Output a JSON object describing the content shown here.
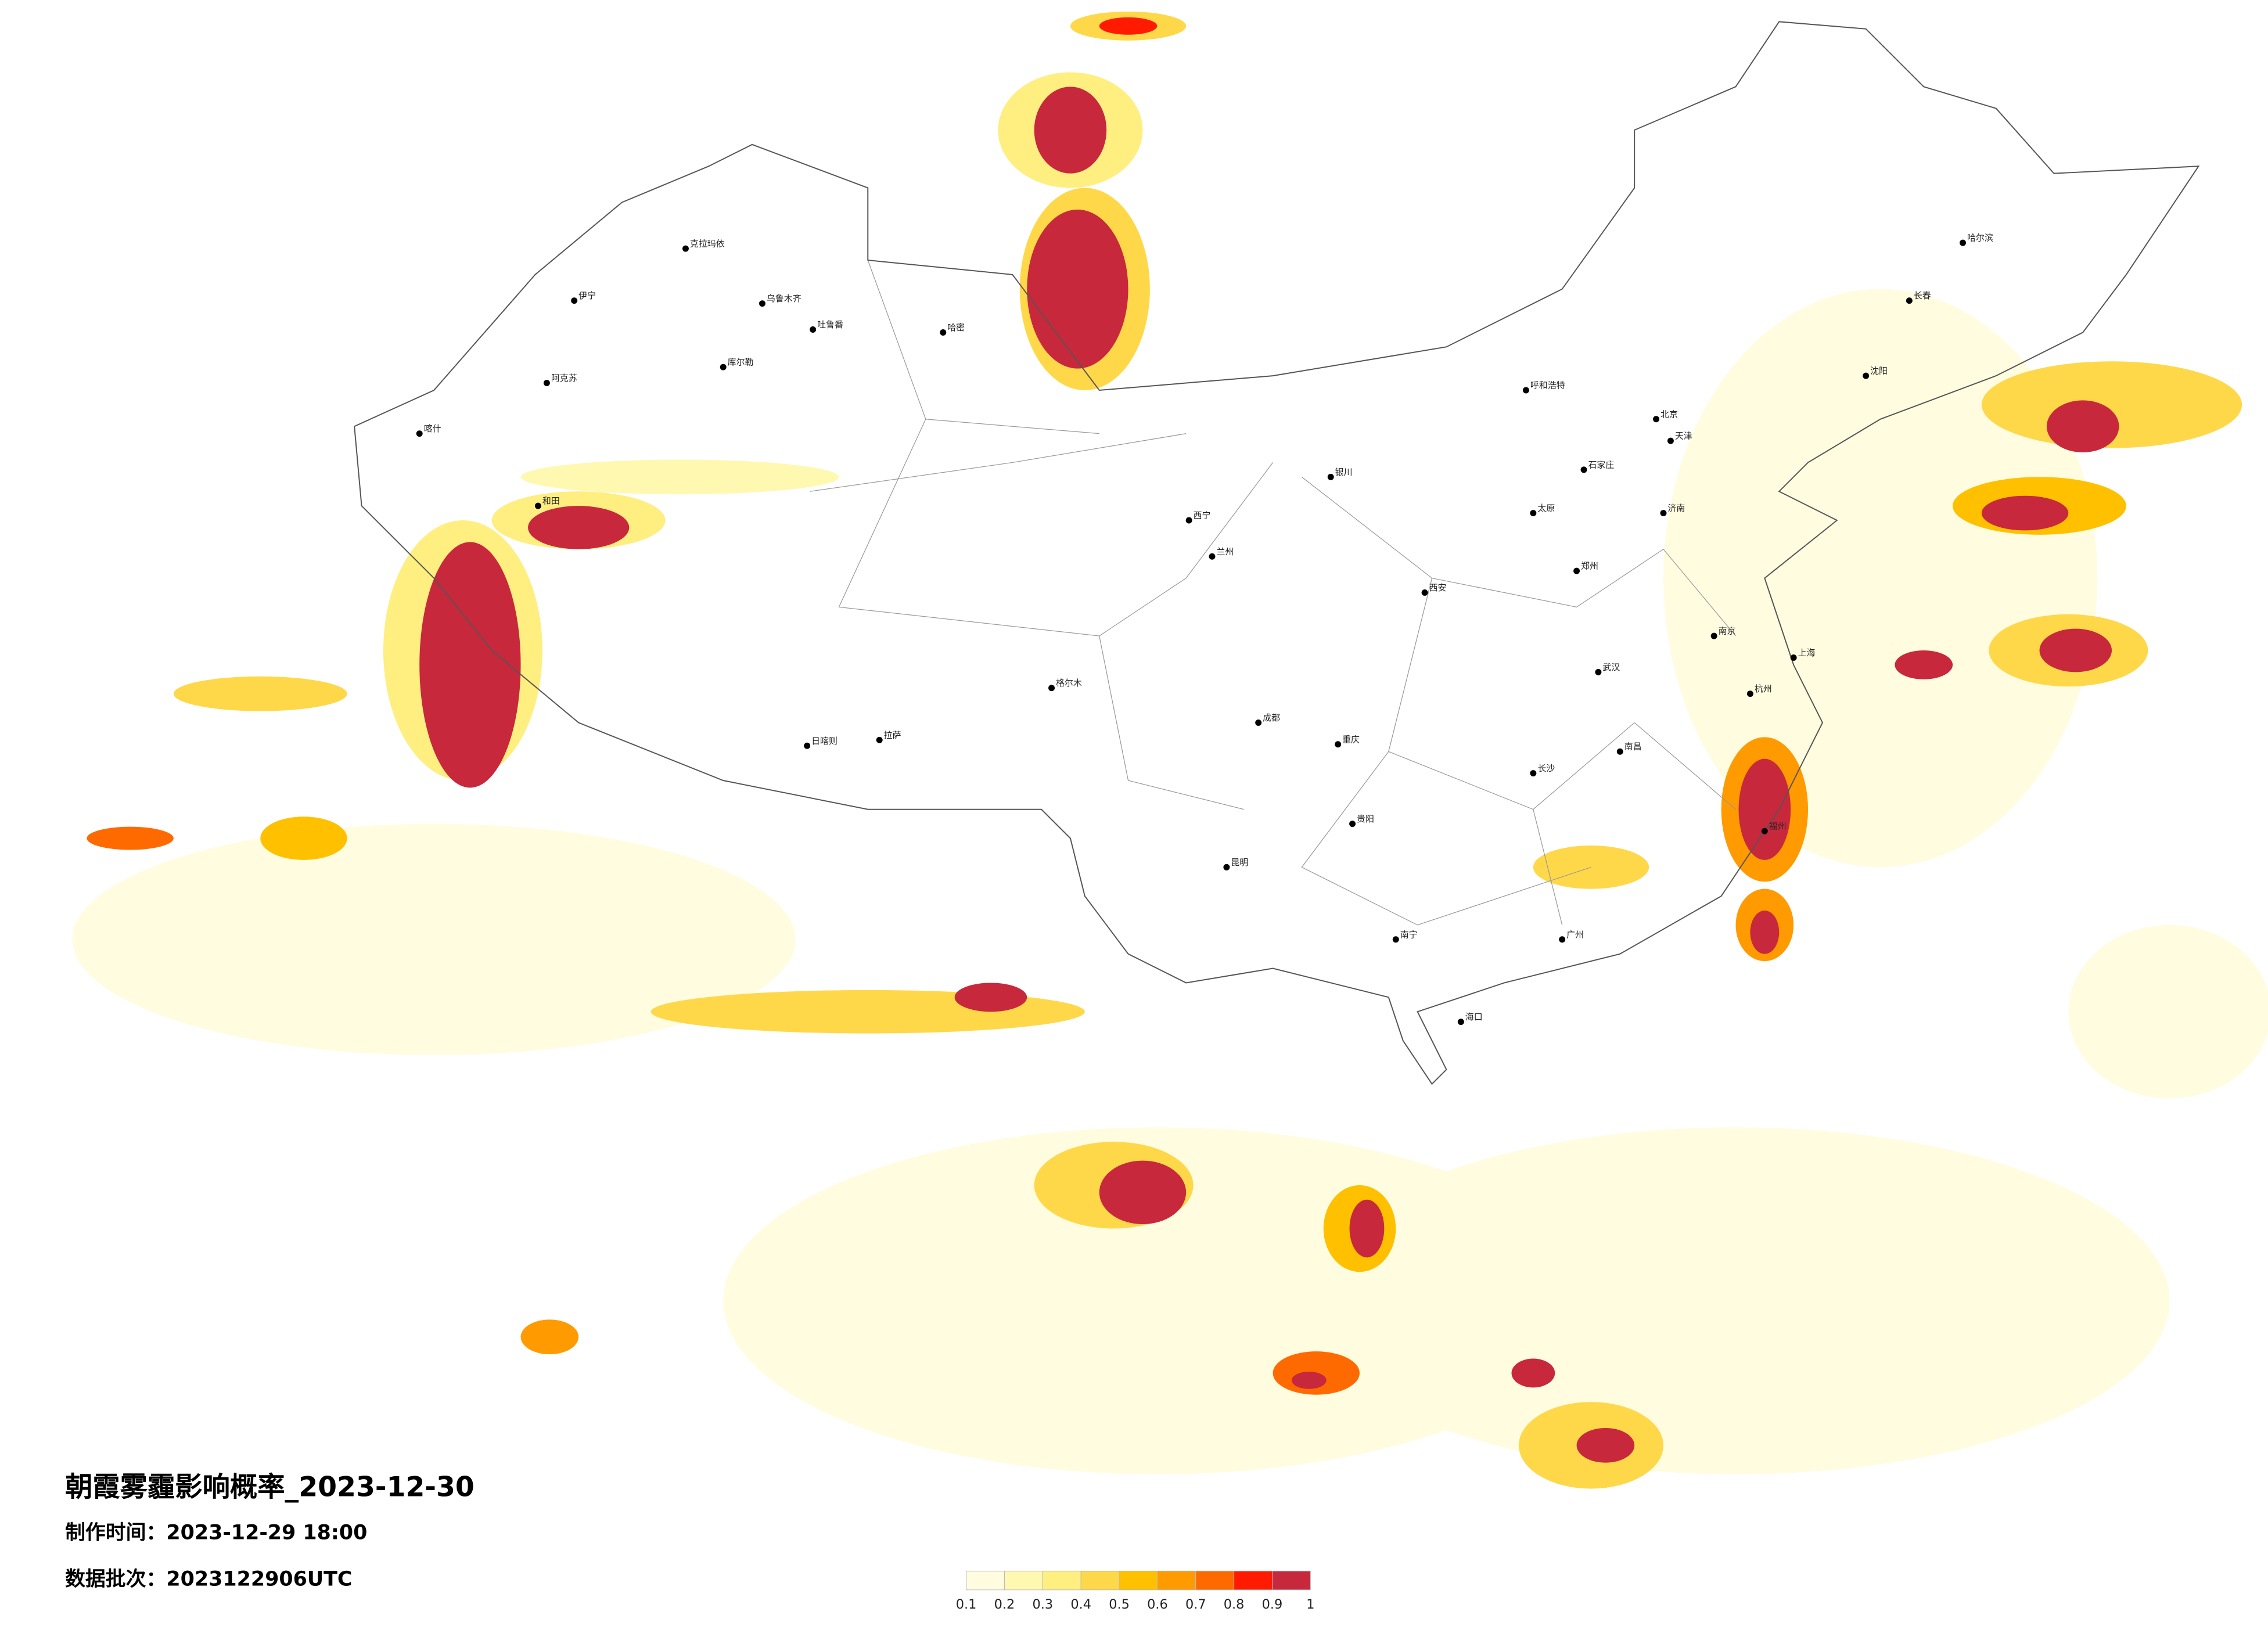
{
  "map": {
    "title": "朝霞雾霾影响概率_2023-12-30",
    "made_time": "制作时间：2023-12-29 18:00",
    "batch": "数据批次：2023122906UTC",
    "legend": {
      "ticks": [
        0.1,
        0.2,
        0.3,
        0.4,
        0.5,
        0.6,
        0.7,
        0.8,
        0.9,
        1
      ],
      "colors": [
        "#fffce0",
        "#fff8b0",
        "#ffee80",
        "#ffd84a",
        "#ffc000",
        "#ff9a00",
        "#ff6a00",
        "#ff1a00",
        "#c8283c"
      ]
    },
    "cities": [
      "乌鲁木齐",
      "伊宁",
      "克拉玛依",
      "阿克苏",
      "喀什",
      "和田",
      "哈密",
      "吐鲁番",
      "库尔勒",
      "格尔木",
      "拉萨",
      "日喀则",
      "西宁",
      "兰州",
      "银川",
      "呼和浩特",
      "哈尔滨",
      "长春",
      "沈阳",
      "北京",
      "天津",
      "石家庄",
      "太原",
      "济南",
      "郑州",
      "西安",
      "武汉",
      "南京",
      "上海",
      "杭州",
      "长沙",
      "南昌",
      "福州",
      "广州",
      "南宁",
      "贵阳",
      "昆明",
      "成都",
      "重庆",
      "海口"
    ]
  }
}
